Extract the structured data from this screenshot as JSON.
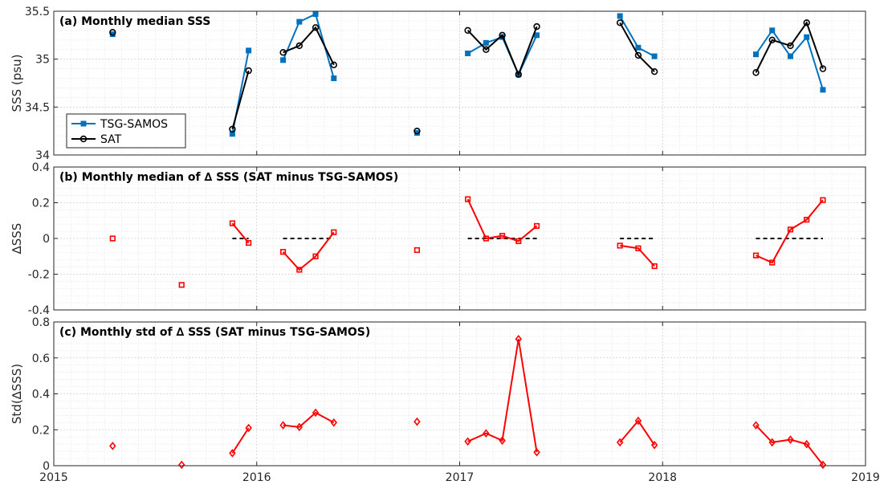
{
  "chart_data": [
    {
      "type": "line",
      "title": "(a) Monthly median SSS",
      "ylabel": "SSS (psu)",
      "xlim": [
        2015,
        2019
      ],
      "ylim": [
        34,
        35.5
      ],
      "yticks": [
        34,
        34.5,
        35,
        35.5
      ],
      "ytick_labels": [
        "34",
        "34.5",
        "35",
        "35.5"
      ],
      "grid": true,
      "legend_position": "lower-left",
      "series": [
        {
          "name": "TSG-SAMOS",
          "color": "#0072BD",
          "marker": "filled-square",
          "segments": [
            [
              [
                2015.29,
                35.26
              ]
            ],
            [
              [
                2015.63,
                34.38
              ]
            ],
            [
              [
                2015.88,
                34.22
              ],
              [
                2015.96,
                35.09
              ]
            ],
            [
              [
                2016.13,
                34.99
              ],
              [
                2016.21,
                35.39
              ],
              [
                2016.29,
                35.47
              ],
              [
                2016.38,
                34.8
              ]
            ],
            [
              [
                2016.79,
                34.23
              ]
            ],
            [
              [
                2017.04,
                35.06
              ],
              [
                2017.13,
                35.17
              ],
              [
                2017.21,
                35.23
              ],
              [
                2017.29,
                34.84
              ],
              [
                2017.38,
                35.25
              ]
            ],
            [
              [
                2017.79,
                35.45
              ],
              [
                2017.88,
                35.12
              ],
              [
                2017.96,
                35.03
              ]
            ],
            [
              [
                2018.46,
                35.05
              ],
              [
                2018.54,
                35.3
              ],
              [
                2018.63,
                35.03
              ],
              [
                2018.71,
                35.23
              ],
              [
                2018.79,
                34.68
              ]
            ]
          ]
        },
        {
          "name": "SAT",
          "color": "#000000",
          "marker": "open-circle",
          "segments": [
            [
              [
                2015.29,
                35.28
              ]
            ],
            [
              [
                2015.63,
                34.12
              ]
            ],
            [
              [
                2015.88,
                34.27
              ],
              [
                2015.96,
                34.88
              ]
            ],
            [
              [
                2016.13,
                35.07
              ],
              [
                2016.21,
                35.14
              ],
              [
                2016.29,
                35.33
              ],
              [
                2016.38,
                34.94
              ]
            ],
            [
              [
                2016.79,
                34.25
              ]
            ],
            [
              [
                2017.04,
                35.3
              ],
              [
                2017.13,
                35.1
              ],
              [
                2017.21,
                35.25
              ],
              [
                2017.29,
                34.84
              ],
              [
                2017.38,
                35.34
              ]
            ],
            [
              [
                2017.79,
                35.38
              ],
              [
                2017.88,
                35.04
              ],
              [
                2017.96,
                34.87
              ]
            ],
            [
              [
                2018.46,
                34.86
              ],
              [
                2018.54,
                35.2
              ],
              [
                2018.63,
                35.14
              ],
              [
                2018.71,
                35.38
              ],
              [
                2018.79,
                34.9
              ]
            ]
          ]
        }
      ]
    },
    {
      "type": "line",
      "title": "(b) Monthly median of ∆ SSS (SAT minus TSG-SAMOS)",
      "ylabel": "∆SSS",
      "xlim": [
        2015,
        2019
      ],
      "ylim": [
        -0.4,
        0.4
      ],
      "yticks": [
        -0.4,
        -0.2,
        0,
        0.2,
        0.4
      ],
      "ytick_labels": [
        "-0.4",
        "-0.2",
        "0",
        "0.2",
        "0.4"
      ],
      "grid": true,
      "series": [
        {
          "color": "#FF0000",
          "marker": "open-square",
          "segments": [
            [
              [
                2015.29,
                0.0
              ]
            ],
            [
              [
                2015.63,
                -0.26
              ]
            ],
            [
              [
                2015.88,
                0.085
              ],
              [
                2015.96,
                -0.025
              ]
            ],
            [
              [
                2016.13,
                -0.075
              ],
              [
                2016.21,
                -0.175
              ],
              [
                2016.29,
                -0.1
              ],
              [
                2016.38,
                0.035
              ]
            ],
            [
              [
                2016.79,
                -0.065
              ]
            ],
            [
              [
                2017.04,
                0.22
              ],
              [
                2017.13,
                0.0
              ],
              [
                2017.21,
                0.015
              ],
              [
                2017.29,
                -0.015
              ],
              [
                2017.38,
                0.07
              ]
            ],
            [
              [
                2017.79,
                -0.04
              ],
              [
                2017.88,
                -0.055
              ],
              [
                2017.96,
                -0.155
              ]
            ],
            [
              [
                2018.46,
                -0.095
              ],
              [
                2018.54,
                -0.135
              ],
              [
                2018.63,
                0.05
              ],
              [
                2018.71,
                0.105
              ],
              [
                2018.79,
                0.215
              ]
            ]
          ]
        }
      ],
      "reference_lines": [
        {
          "y": 0,
          "style": "dashed",
          "color": "#000000",
          "x": [
            2015.88,
            2015.96
          ]
        },
        {
          "y": 0,
          "style": "dashed",
          "color": "#000000",
          "x": [
            2016.13,
            2016.38
          ]
        },
        {
          "y": 0,
          "style": "dashed",
          "color": "#000000",
          "x": [
            2017.04,
            2017.38
          ]
        },
        {
          "y": 0,
          "style": "dashed",
          "color": "#000000",
          "x": [
            2017.79,
            2017.96
          ]
        },
        {
          "y": 0,
          "style": "dashed",
          "color": "#000000",
          "x": [
            2018.46,
            2018.79
          ]
        }
      ]
    },
    {
      "type": "line",
      "title": "(c) Monthly std of ∆ SSS (SAT minus TSG-SAMOS)",
      "ylabel": "Std(∆SSS)",
      "xlim": [
        2015,
        2019
      ],
      "ylim": [
        0,
        0.8
      ],
      "yticks": [
        0,
        0.2,
        0.4,
        0.6,
        0.8
      ],
      "ytick_labels": [
        "0",
        "0.2",
        "0.4",
        "0.6",
        "0.8"
      ],
      "xticks": [
        2015,
        2016,
        2017,
        2018,
        2019
      ],
      "xtick_labels": [
        "2015",
        "2016",
        "2017",
        "2018",
        "2019"
      ],
      "grid": true,
      "series": [
        {
          "color": "#FF0000",
          "marker": "open-diamond",
          "segments": [
            [
              [
                2015.29,
                0.11
              ]
            ],
            [
              [
                2015.63,
                0.005
              ]
            ],
            [
              [
                2015.88,
                0.07
              ],
              [
                2015.96,
                0.21
              ]
            ],
            [
              [
                2016.13,
                0.225
              ],
              [
                2016.21,
                0.215
              ],
              [
                2016.29,
                0.295
              ],
              [
                2016.38,
                0.24
              ]
            ],
            [
              [
                2016.79,
                0.245
              ]
            ],
            [
              [
                2017.04,
                0.135
              ],
              [
                2017.13,
                0.18
              ],
              [
                2017.21,
                0.14
              ],
              [
                2017.29,
                0.705
              ],
              [
                2017.38,
                0.075
              ]
            ],
            [
              [
                2017.79,
                0.13
              ],
              [
                2017.88,
                0.25
              ],
              [
                2017.96,
                0.115
              ]
            ],
            [
              [
                2018.46,
                0.225
              ],
              [
                2018.54,
                0.13
              ],
              [
                2018.63,
                0.145
              ],
              [
                2018.71,
                0.12
              ],
              [
                2018.79,
                0.005
              ]
            ]
          ]
        }
      ]
    }
  ]
}
